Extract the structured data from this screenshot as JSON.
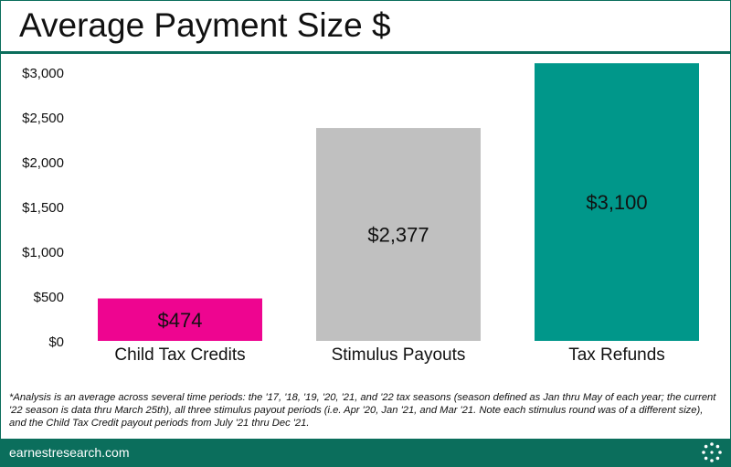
{
  "header": {
    "title": "Average Payment Size $"
  },
  "chart_data": {
    "type": "bar",
    "title": "Average Payment Size $",
    "xlabel": "",
    "ylabel": "",
    "categories": [
      "Child Tax Credits",
      "Stimulus Payouts",
      "Tax Refunds"
    ],
    "values": [
      474,
      2377,
      3100
    ],
    "data_labels": [
      "$474",
      "$2,377",
      "$3,100"
    ],
    "colors": [
      "#ee0590",
      "#c0c0c0",
      "#00978a"
    ],
    "ylim": [
      0,
      3000
    ],
    "y_ticks": [
      0,
      500,
      1000,
      1500,
      2000,
      2500,
      3000
    ],
    "y_tick_labels": [
      "$0",
      "$500",
      "$1,000",
      "$1,500",
      "$2,000",
      "$2,500",
      "$3,000"
    ],
    "grid": false,
    "legend": "none"
  },
  "footnote": "*Analysis is an average across several time periods: the '17, '18, '19, '20, '21, and '22 tax seasons (season defined as Jan thru May of each year; the current '22 season is data thru March 25th), all three stimulus payout periods (i.e. Apr '20, Jan '21, and Mar '21. Note each stimulus round was of a different size), and the Child Tax Credit payout periods from July '21 thru Dec '21.",
  "footer": {
    "brand": "earnestresearch.com",
    "logo_icon": "dotted-circle-logo-icon",
    "accent": "#0b6e5c"
  }
}
